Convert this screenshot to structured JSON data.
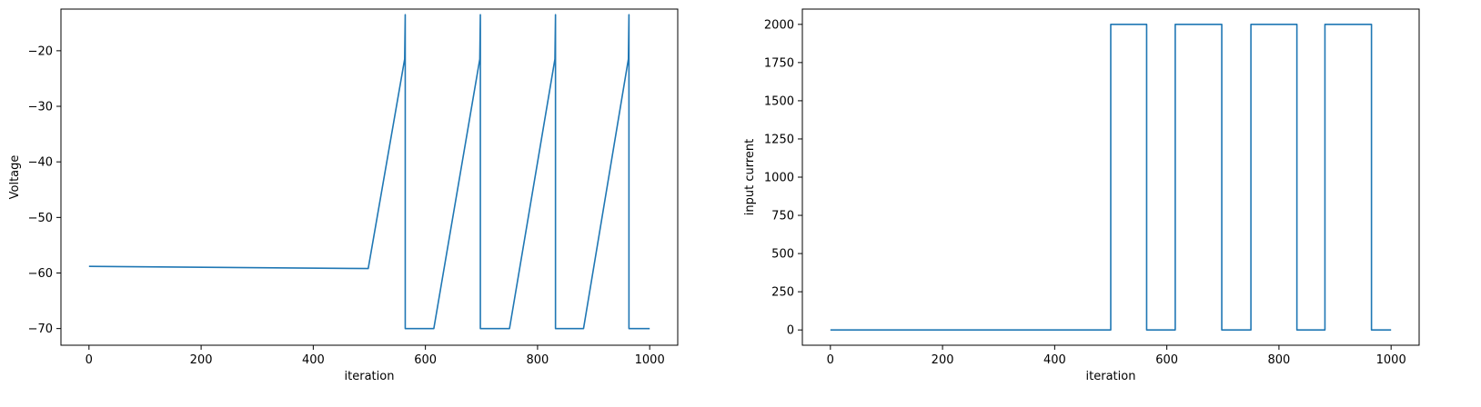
{
  "chart_data": [
    {
      "type": "line",
      "title": "",
      "xlabel": "iteration",
      "ylabel": "Voltage",
      "xlim": [
        -50,
        1050
      ],
      "ylim": [
        -73,
        -12.5
      ],
      "xticks": [
        0,
        200,
        400,
        600,
        800,
        1000
      ],
      "yticks": [
        -70,
        -60,
        -50,
        -40,
        -30,
        -20
      ],
      "xtick_labels": [
        "0",
        "200",
        "400",
        "600",
        "800",
        "1000"
      ],
      "ytick_labels": [
        "−70",
        "−60",
        "−50",
        "−40",
        "−30",
        "−20"
      ],
      "grid": false,
      "color": "#1f77b4",
      "series": [
        {
          "name": "Voltage",
          "x": [
            0,
            498,
            563,
            564,
            564,
            565,
            565,
            615,
            697,
            698,
            698,
            699,
            699,
            750,
            831,
            832,
            832,
            833,
            833,
            882,
            962,
            963,
            963,
            964,
            964,
            1000
          ],
          "y": [
            -58.8,
            -59.2,
            -21.5,
            -13.5,
            -70,
            -70,
            -70,
            -70,
            -21.5,
            -13.5,
            -70,
            -70,
            -70,
            -70,
            -21.5,
            -13.5,
            -70,
            -70,
            -70,
            -70,
            -21.5,
            -13.5,
            -70,
            -70,
            -70,
            -70
          ]
        }
      ]
    },
    {
      "type": "line",
      "title": "",
      "xlabel": "iteration",
      "ylabel": "input current",
      "xlim": [
        -50,
        1050
      ],
      "ylim": [
        -100,
        2100
      ],
      "xticks": [
        0,
        200,
        400,
        600,
        800,
        1000
      ],
      "yticks": [
        0,
        250,
        500,
        750,
        1000,
        1250,
        1500,
        1750,
        2000
      ],
      "xtick_labels": [
        "0",
        "200",
        "400",
        "600",
        "800",
        "1000"
      ],
      "ytick_labels": [
        "0",
        "250",
        "500",
        "750",
        "1000",
        "1250",
        "1500",
        "1750",
        "2000"
      ],
      "grid": false,
      "color": "#1f77b4",
      "series": [
        {
          "name": "input current",
          "x": [
            0,
            500,
            500,
            564,
            564,
            615,
            615,
            698,
            698,
            750,
            750,
            832,
            832,
            882,
            882,
            965,
            965,
            1000
          ],
          "y": [
            0,
            0,
            2000,
            2000,
            0,
            0,
            2000,
            2000,
            0,
            0,
            2000,
            2000,
            0,
            0,
            2000,
            2000,
            0,
            0
          ]
        }
      ]
    }
  ]
}
